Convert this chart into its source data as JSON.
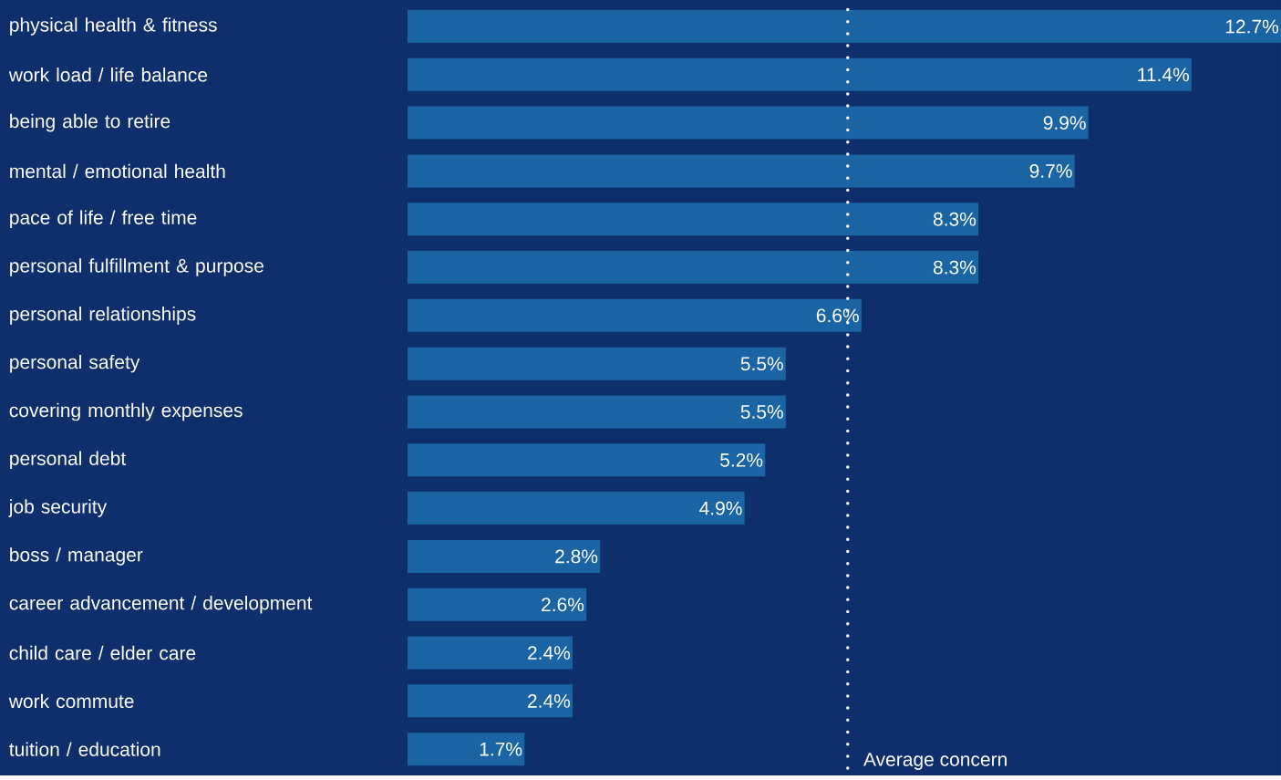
{
  "chart_data": {
    "type": "bar",
    "orientation": "horizontal",
    "categories": [
      "physical health & fitness",
      "work load / life balance",
      "being able to retire",
      "mental / emotional health",
      "pace of life / free time",
      "personal fulfillment & purpose",
      "personal relationships",
      "personal safety",
      "covering monthly expenses",
      "personal debt",
      "job security",
      "boss / manager",
      "career advancement / development",
      "child care / elder care",
      "work commute",
      "tuition / education"
    ],
    "values": [
      12.7,
      11.4,
      9.9,
      9.7,
      8.3,
      8.3,
      6.6,
      5.5,
      5.5,
      5.2,
      4.9,
      2.8,
      2.6,
      2.4,
      2.4,
      1.7
    ],
    "value_labels": [
      "12.7%",
      "11.4%",
      "9.9%",
      "9.7%",
      "8.3%",
      "8.3%",
      "6.6%",
      "5.5%",
      "5.5%",
      "5.2%",
      "4.9%",
      "2.8%",
      "2.6%",
      "2.4%",
      "2.4%",
      "1.7%"
    ],
    "color": "#1a64a4",
    "xlim": [
      0,
      12.7
    ],
    "tick_labels": "y",
    "grid": false,
    "ref_lines": [
      {
        "axis": "x",
        "value": 6.4,
        "label": "Average concern",
        "color": "#ffffff",
        "line_style": "dotted"
      }
    ]
  }
}
